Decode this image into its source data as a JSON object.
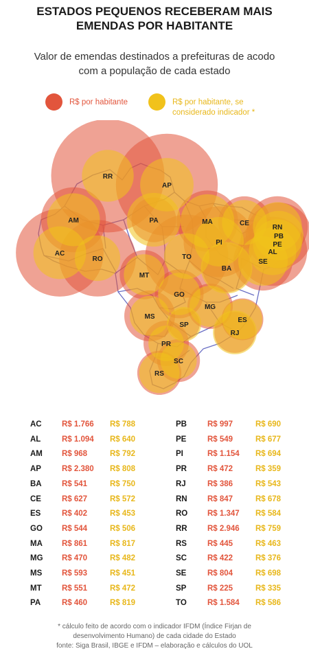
{
  "title_line1": "ESTADOS PEQUENOS RECEBERAM MAIS",
  "title_line2": "EMENDAS POR HABITANTE",
  "subtitle_line1": "Valor de emendas destinados a prefeituras de acodo",
  "subtitle_line2": "com a população de cada estado",
  "legend": {
    "red_label": "R$ por habitante",
    "yellow_label_line1": "R$ por habitante, se",
    "yellow_label_line2": "considerado indicador *",
    "red_color": "#e2553c",
    "yellow_color": "#f1c21b"
  },
  "states": [
    {
      "uf": "AC",
      "per_capita": "R$ 1.766",
      "with_indicator": "R$ 788"
    },
    {
      "uf": "AL",
      "per_capita": "R$ 1.094",
      "with_indicator": "R$ 640"
    },
    {
      "uf": "AM",
      "per_capita": "R$ 968",
      "with_indicator": "R$ 792"
    },
    {
      "uf": "AP",
      "per_capita": "R$ 2.380",
      "with_indicator": "R$ 808"
    },
    {
      "uf": "BA",
      "per_capita": "R$ 541",
      "with_indicator": "R$ 750"
    },
    {
      "uf": "CE",
      "per_capita": "R$ 627",
      "with_indicator": "R$ 572"
    },
    {
      "uf": "ES",
      "per_capita": "R$ 402",
      "with_indicator": "R$ 453"
    },
    {
      "uf": "GO",
      "per_capita": "R$ 544",
      "with_indicator": "R$ 506"
    },
    {
      "uf": "MA",
      "per_capita": "R$ 861",
      "with_indicator": "R$ 817"
    },
    {
      "uf": "MG",
      "per_capita": "R$ 470",
      "with_indicator": "R$ 482"
    },
    {
      "uf": "MS",
      "per_capita": "R$ 593",
      "with_indicator": "R$ 451"
    },
    {
      "uf": "MT",
      "per_capita": "R$ 551",
      "with_indicator": "R$ 472"
    },
    {
      "uf": "PA",
      "per_capita": "R$ 460",
      "with_indicator": "R$ 819"
    },
    {
      "uf": "PB",
      "per_capita": "R$ 997",
      "with_indicator": "R$ 690"
    },
    {
      "uf": "PE",
      "per_capita": "R$ 549",
      "with_indicator": "R$ 677"
    },
    {
      "uf": "PI",
      "per_capita": "R$ 1.154",
      "with_indicator": "R$ 694"
    },
    {
      "uf": "PR",
      "per_capita": "R$ 472",
      "with_indicator": "R$ 359"
    },
    {
      "uf": "RJ",
      "per_capita": "R$ 386",
      "with_indicator": "R$ 543"
    },
    {
      "uf": "RN",
      "per_capita": "R$ 847",
      "with_indicator": "R$ 678"
    },
    {
      "uf": "RO",
      "per_capita": "R$ 1.347",
      "with_indicator": "R$ 584"
    },
    {
      "uf": "RR",
      "per_capita": "R$ 2.946",
      "with_indicator": "R$ 759"
    },
    {
      "uf": "RS",
      "per_capita": "R$ 445",
      "with_indicator": "R$ 463"
    },
    {
      "uf": "SC",
      "per_capita": "R$ 422",
      "with_indicator": "R$ 376"
    },
    {
      "uf": "SE",
      "per_capita": "R$ 804",
      "with_indicator": "R$ 698"
    },
    {
      "uf": "SP",
      "per_capita": "R$ 225",
      "with_indicator": "R$ 335"
    },
    {
      "uf": "TO",
      "per_capita": "R$ 1.584",
      "with_indicator": "R$ 586"
    }
  ],
  "footnote_line1": "* cálculo feito de acordo com o indicador IFDM (Índice Firjan de",
  "footnote_line2": "desenvolvimento Humano) de cada cidade do Estado",
  "footnote_line3": "fonte: Siga Brasil, IBGE e IFDM – elaboração e cálculos do UOL"
}
